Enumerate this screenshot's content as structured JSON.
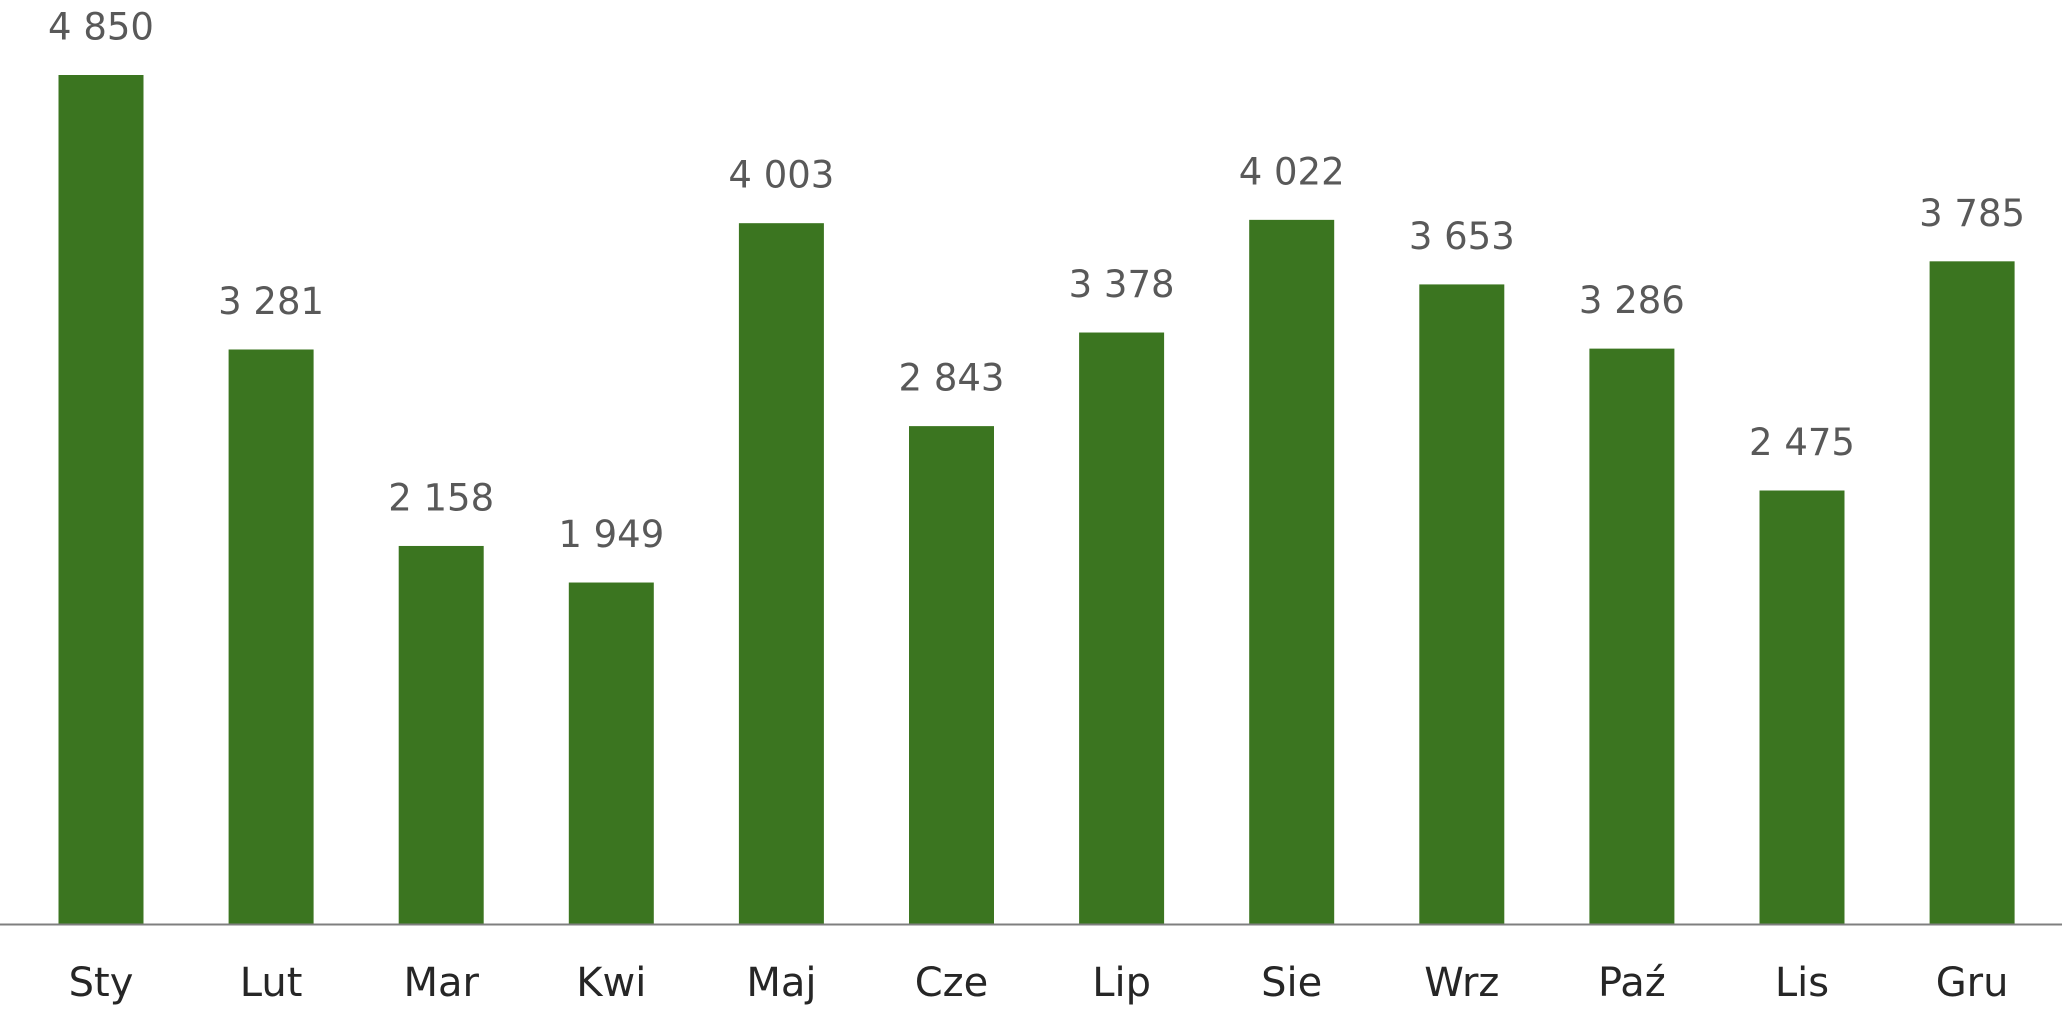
{
  "chart_data": {
    "type": "bar",
    "categories": [
      "Sty",
      "Lut",
      "Mar",
      "Kwi",
      "Maj",
      "Cze",
      "Lip",
      "Sie",
      "Wrz",
      "Paź",
      "Lis",
      "Gru"
    ],
    "values": [
      4850,
      3281,
      2158,
      1949,
      4003,
      2843,
      3378,
      4022,
      3653,
      3286,
      2475,
      3785
    ],
    "value_labels": [
      "4 850",
      "3 281",
      "2 158",
      "1 949",
      "4 003",
      "2 843",
      "3 378",
      "4 022",
      "3 653",
      "3 286",
      "2 475",
      "3 785"
    ],
    "color": "#3b7520"
  }
}
